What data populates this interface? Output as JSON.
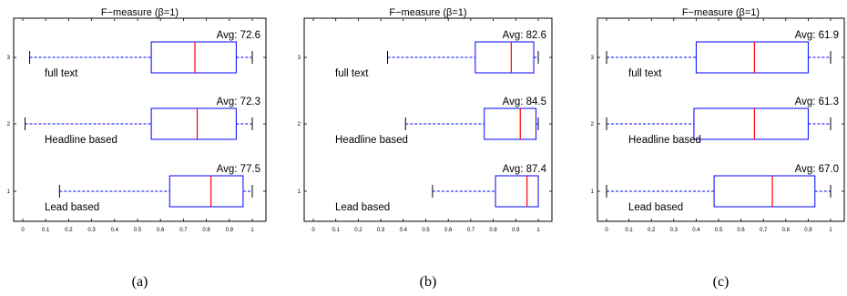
{
  "chart_data": [
    {
      "type": "boxplot",
      "title": "F−measure (β=1)",
      "caption": "(a)",
      "xlim": [
        0,
        1
      ],
      "xticks": [
        "0",
        "0.1",
        "0.2",
        "0.3",
        "0.4",
        "0.5",
        "0.6",
        "0.7",
        "0.8",
        "0.9",
        "1"
      ],
      "yticks": [
        "1",
        "2",
        "3"
      ],
      "series": [
        {
          "group": "full text",
          "y": 3,
          "avg_label": "Avg: 72.6",
          "min": 0.03,
          "q1": 0.56,
          "median": 0.75,
          "q3": 0.93,
          "max": 1.0
        },
        {
          "group": "Headline based",
          "y": 2,
          "avg_label": "Avg: 72.3",
          "min": 0.01,
          "q1": 0.56,
          "median": 0.76,
          "q3": 0.93,
          "max": 1.0
        },
        {
          "group": "Lead based",
          "y": 1,
          "avg_label": "Avg: 77.5",
          "min": 0.16,
          "q1": 0.64,
          "median": 0.82,
          "q3": 0.96,
          "max": 1.0
        }
      ]
    },
    {
      "type": "boxplot",
      "title": "F−measure (β=1)",
      "caption": "(b)",
      "xlim": [
        0,
        1
      ],
      "xticks": [
        "0",
        "0.1",
        "0.2",
        "0.3",
        "0.4",
        "0.5",
        "0.6",
        "0.7",
        "0.8",
        "0.9",
        "1"
      ],
      "yticks": [
        "1",
        "2",
        "3"
      ],
      "series": [
        {
          "group": "full text",
          "y": 3,
          "avg_label": "Avg: 82.6",
          "min": 0.33,
          "q1": 0.72,
          "median": 0.88,
          "q3": 0.98,
          "max": 1.0
        },
        {
          "group": "Headline based",
          "y": 2,
          "avg_label": "Avg: 84.5",
          "min": 0.41,
          "q1": 0.76,
          "median": 0.92,
          "q3": 0.99,
          "max": 1.0
        },
        {
          "group": "Lead based",
          "y": 1,
          "avg_label": "Avg: 87.4",
          "min": 0.53,
          "q1": 0.81,
          "median": 0.95,
          "q3": 1.0,
          "max": 1.0
        }
      ]
    },
    {
      "type": "boxplot",
      "title": "F−measure (β=1)",
      "caption": "(c)",
      "xlim": [
        0,
        1
      ],
      "xticks": [
        "0",
        "0.1",
        "0.2",
        "0.3",
        "0.4",
        "0.5",
        "0.6",
        "0.7",
        "0.8",
        "0.9",
        "1"
      ],
      "yticks": [
        "1",
        "2",
        "3"
      ],
      "series": [
        {
          "group": "full text",
          "y": 3,
          "avg_label": "Avg: 61.9",
          "min": 0.0,
          "q1": 0.4,
          "median": 0.66,
          "q3": 0.9,
          "max": 1.0
        },
        {
          "group": "Headline based",
          "y": 2,
          "avg_label": "Avg: 61.3",
          "min": 0.0,
          "q1": 0.39,
          "median": 0.66,
          "q3": 0.9,
          "max": 1.0
        },
        {
          "group": "Lead based",
          "y": 1,
          "avg_label": "Avg: 67.0",
          "min": 0.0,
          "q1": 0.48,
          "median": 0.74,
          "q3": 0.93,
          "max": 1.0
        }
      ]
    }
  ],
  "colors": {
    "box": "#0000ff",
    "median": "#ff0000",
    "whisker": "#0000ff",
    "axes": "#000000"
  }
}
